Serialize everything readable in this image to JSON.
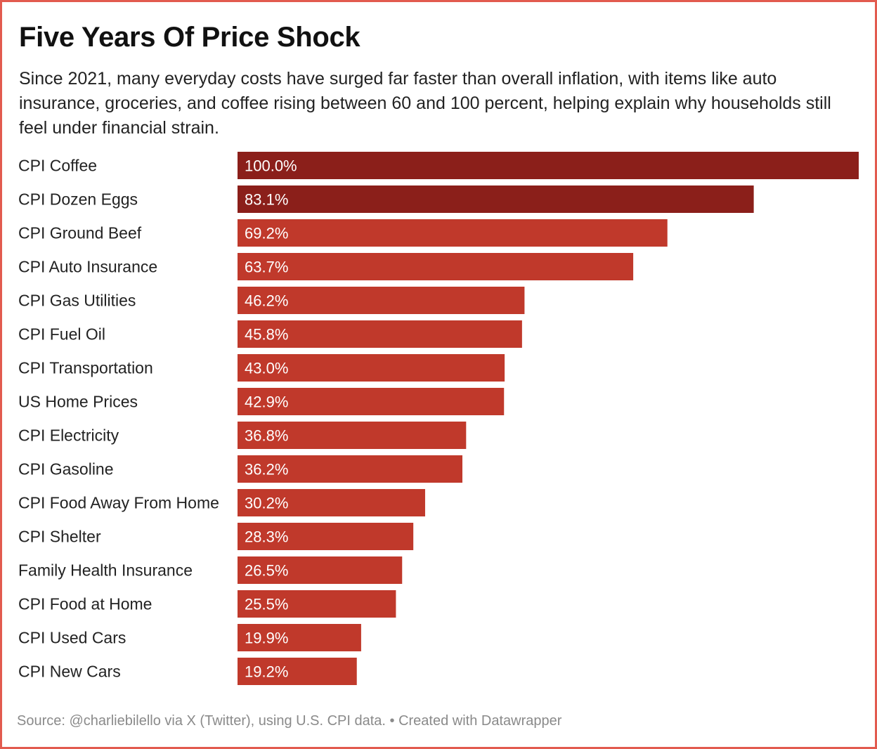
{
  "title": "Five Years Of Price Shock",
  "subtitle": "Since 2021, many everyday costs have surged far faster than overall inflation, with items like auto insurance, groceries, and coffee rising between 60 and 100 percent, helping explain why households still feel under financial strain.",
  "footer": {
    "source": "Source: @charliebilello via X (Twitter), using U.S. CPI data.",
    "separator": " • ",
    "credit": "Created with Datawrapper"
  },
  "colors": {
    "frame": "#e25b4f",
    "highlight_bar": "#8b1f1a",
    "bar": "#c0392b"
  },
  "chart_data": {
    "type": "bar",
    "orientation": "horizontal",
    "value_suffix": "%",
    "xlim": [
      0,
      100
    ],
    "highlight_count": 2,
    "categories": [
      "CPI Coffee",
      "CPI Dozen Eggs",
      "CPI Ground Beef",
      "CPI Auto Insurance",
      "CPI Gas Utilities",
      "CPI Fuel Oil",
      "CPI Transportation",
      "US Home Prices",
      "CPI Electricity",
      "CPI Gasoline",
      "CPI Food Away From Home",
      "CPI Shelter",
      "Family Health Insurance",
      "CPI Food at Home",
      "CPI Used Cars",
      "CPI New Cars"
    ],
    "values": [
      100.0,
      83.1,
      69.2,
      63.7,
      46.2,
      45.8,
      43.0,
      42.9,
      36.8,
      36.2,
      30.2,
      28.3,
      26.5,
      25.5,
      19.9,
      19.2
    ]
  }
}
